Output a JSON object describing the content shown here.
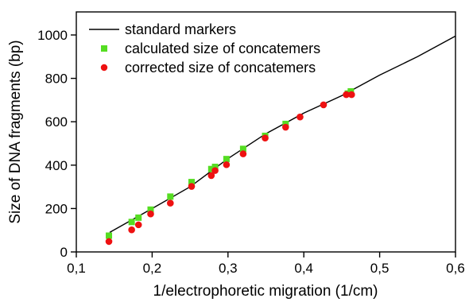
{
  "chart_data": {
    "type": "scatter",
    "title": "",
    "xlabel": "1/electrophoretic migration (1/cm)",
    "ylabel": "Size of DNA fragments (bp)",
    "xlim": [
      0.1,
      0.6
    ],
    "ylim": [
      0,
      1100
    ],
    "x_ticks": [
      "0,1",
      "0,2",
      "0,3",
      "0,4",
      "0,5",
      "0,6"
    ],
    "x_tick_values": [
      0.1,
      0.2,
      0.3,
      0.4,
      0.5,
      0.6
    ],
    "y_ticks": [
      "0",
      "200",
      "400",
      "600",
      "800",
      "1000"
    ],
    "y_tick_values": [
      0,
      200,
      400,
      600,
      800,
      1000
    ],
    "grid": false,
    "legend_position": "top-left",
    "series": [
      {
        "name": "standard markers",
        "kind": "line",
        "color": "#000000",
        "x": [
          0.144,
          0.2,
          0.25,
          0.3,
          0.35,
          0.4,
          0.45,
          0.5,
          0.55,
          0.6
        ],
        "y": [
          90,
          200,
          300,
          430,
          545,
          640,
          720,
          815,
          900,
          995
        ]
      },
      {
        "name": "calculated size of concatemers",
        "kind": "marker-square",
        "color": "#55dd22",
        "x": [
          0.143,
          0.173,
          0.182,
          0.198,
          0.224,
          0.252,
          0.278,
          0.283,
          0.298,
          0.32,
          0.349,
          0.376,
          0.458,
          0.462
        ],
        "y": [
          75,
          138,
          158,
          195,
          255,
          322,
          382,
          392,
          428,
          475,
          535,
          590,
          730,
          740
        ]
      },
      {
        "name": "corrected size of concatemers",
        "kind": "marker-circle",
        "color": "#ee1111",
        "x": [
          0.143,
          0.173,
          0.182,
          0.198,
          0.224,
          0.252,
          0.278,
          0.283,
          0.298,
          0.32,
          0.349,
          0.376,
          0.395,
          0.426,
          0.456,
          0.463
        ],
        "y": [
          48,
          102,
          125,
          175,
          225,
          302,
          352,
          375,
          402,
          452,
          525,
          575,
          622,
          678,
          725,
          725
        ]
      }
    ]
  }
}
